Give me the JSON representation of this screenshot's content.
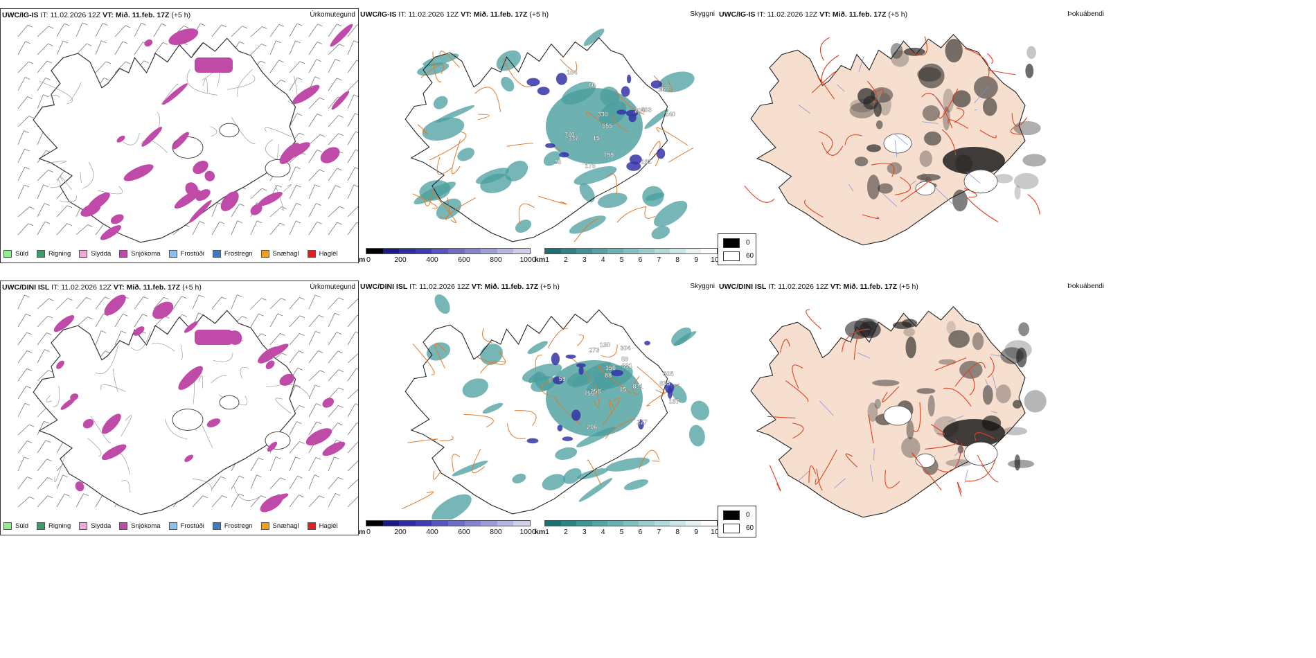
{
  "rows": [
    {
      "model": "UWC/IG-IS",
      "it_label": "IT:",
      "it_value": "11.02.2026 12Z",
      "vt_label": "VT:",
      "vt_value": "Mið. 11.feb. 17Z",
      "lead": "(+5 h)",
      "labels": [
        {
          "text": "224"
        },
        {
          "text": "161"
        },
        {
          "text": "503"
        },
        {
          "text": "555"
        },
        {
          "text": "799"
        },
        {
          "text": "60"
        },
        {
          "text": "330"
        },
        {
          "text": "370"
        },
        {
          "text": "15"
        },
        {
          "text": "240"
        },
        {
          "text": "337"
        },
        {
          "text": "164"
        },
        {
          "text": "178"
        },
        {
          "text": "260"
        },
        {
          "text": "38"
        }
      ]
    },
    {
      "model": "UWC/DINI ISL",
      "it_label": "IT:",
      "it_value": "11.02.2026 12Z",
      "vt_label": "VT:",
      "vt_value": "Mið. 11.feb. 17Z",
      "lead": "(+5 h)",
      "labels": [
        {
          "text": "206"
        },
        {
          "text": "350"
        },
        {
          "text": "835"
        },
        {
          "text": "505"
        },
        {
          "text": "759"
        },
        {
          "text": "831"
        },
        {
          "text": "59"
        },
        {
          "text": "258"
        },
        {
          "text": "88"
        },
        {
          "text": "227"
        },
        {
          "text": "187"
        },
        {
          "text": "15"
        },
        {
          "text": "331"
        },
        {
          "text": "130"
        },
        {
          "text": "273"
        },
        {
          "text": "304"
        },
        {
          "text": "59"
        }
      ]
    }
  ],
  "panel_titles": {
    "precip": "Úrkomutegund",
    "cloud": "Skyggni",
    "fog": "Þokuábendi"
  },
  "precip_legend": [
    {
      "label": "Súld",
      "color": "#90ee90"
    },
    {
      "label": "Rigning",
      "color": "#3c9a6b"
    },
    {
      "label": "Slydda",
      "color": "#f0a8d8"
    },
    {
      "label": "Snjókoma",
      "color": "#c04aa8"
    },
    {
      "label": "Frostúði",
      "color": "#8ec0ee"
    },
    {
      "label": "Frostregn",
      "color": "#3d7ac2"
    },
    {
      "label": "Snæhagl",
      "color": "#f0a020"
    },
    {
      "label": "Haglél",
      "color": "#e02020"
    }
  ],
  "cbar_m": {
    "unit": "m",
    "ticks": [
      "0",
      "200",
      "400",
      "600",
      "800",
      "1000"
    ],
    "colors": [
      "#000000",
      "#1a1a80",
      "#2e2e9c",
      "#3e3eb0",
      "#5555bb",
      "#6d6dc4",
      "#8585cc",
      "#9d9dd6",
      "#b5b5e0",
      "#cfcfea"
    ]
  },
  "cbar_km": {
    "unit": "km",
    "ticks": [
      "1",
      "2",
      "3",
      "4",
      "5",
      "6",
      "7",
      "8",
      "9",
      "10"
    ],
    "colors": [
      "#1d7070",
      "#2f8282",
      "#419494",
      "#55a3a3",
      "#6bb1b1",
      "#82bfbf",
      "#9acccc",
      "#b2d9d9",
      "#cbe6e6",
      "#e4f2f2",
      "#ffffff"
    ]
  },
  "fog_legend": {
    "top": "0",
    "bottom": "60"
  },
  "colors": {
    "snow": "#c04aa8",
    "teal": "#4a9e9e",
    "blue": "#3434a8",
    "road": "#e07a2a",
    "land_fog": "#f6dfcf",
    "coast": "#222222"
  }
}
